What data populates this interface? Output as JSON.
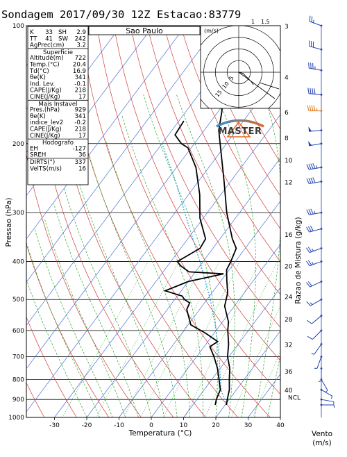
{
  "title": "Sondagem 2017/09/30 12Z Estacao:83779",
  "station_name": "Sao Paulo",
  "brand": "MASTER",
  "colors": {
    "temperature": "#000000",
    "dewpoint": "#000000",
    "isotherm": "#4a6fd6",
    "dry_adiabat": "#d23a3a",
    "moist_adiabat": "#2aa52a",
    "mixing_ratio": "#2aa52a",
    "parcel": "#1fa0d8",
    "wind_barb": "#1f3fb0",
    "wind_barb_highlight": "#e07820"
  },
  "chart_data": {
    "type": "skew-t",
    "xlabel": "Temperatura (°C)",
    "ylabel": "Pressao (hPa)",
    "y2label": "Razao de Mistura (g/kg)",
    "wind_label": "Vento",
    "wind_unit": "(m/s)",
    "x_ticks": [
      -30,
      -20,
      -10,
      0,
      10,
      20,
      30,
      40
    ],
    "p_ticks": [
      100,
      200,
      300,
      400,
      500,
      600,
      700,
      800,
      900,
      1000
    ],
    "mixing_ratio_ticks": [
      {
        "value": "3",
        "p": 100
      },
      {
        "value": "4",
        "p": 135
      },
      {
        "value": "6",
        "p": 166
      },
      {
        "value": "8",
        "p": 193
      },
      {
        "value": "10",
        "p": 220
      },
      {
        "value": "12",
        "p": 250
      },
      {
        "value": "16",
        "p": 340
      },
      {
        "value": "20",
        "p": 410
      },
      {
        "value": "24",
        "p": 490
      },
      {
        "value": "28",
        "p": 560
      },
      {
        "value": "32",
        "p": 650
      },
      {
        "value": "36",
        "p": 760
      },
      {
        "value": "40",
        "p": 850
      }
    ],
    "ncl_label": "NCL",
    "temperature_profile": [
      {
        "p": 929,
        "t": 20.4
      },
      {
        "p": 900,
        "t": 19.4
      },
      {
        "p": 850,
        "t": 17.8
      },
      {
        "p": 800,
        "t": 15.4
      },
      {
        "p": 750,
        "t": 13.0
      },
      {
        "p": 700,
        "t": 9.6
      },
      {
        "p": 650,
        "t": 7.0
      },
      {
        "p": 620,
        "t": 5.0
      },
      {
        "p": 600,
        "t": 3.6
      },
      {
        "p": 570,
        "t": 1.8
      },
      {
        "p": 520,
        "t": -3.0
      },
      {
        "p": 480,
        "t": -5.2
      },
      {
        "p": 450,
        "t": -8.0
      },
      {
        "p": 420,
        "t": -10.8
      },
      {
        "p": 400,
        "t": -11.4
      },
      {
        "p": 370,
        "t": -12.8
      },
      {
        "p": 350,
        "t": -16.2
      },
      {
        "p": 300,
        "t": -24.0
      },
      {
        "p": 250,
        "t": -32.0
      },
      {
        "p": 200,
        "t": -42.0
      },
      {
        "p": 185,
        "t": -45.5
      },
      {
        "p": 165,
        "t": -49.0
      },
      {
        "p": 150,
        "t": -53.0
      },
      {
        "p": 130,
        "t": -56.5
      },
      {
        "p": 115,
        "t": -59.0
      },
      {
        "p": 100,
        "t": -62.5
      }
    ],
    "dewpoint_profile": [
      {
        "p": 929,
        "t": 16.9
      },
      {
        "p": 900,
        "t": 16.0
      },
      {
        "p": 850,
        "t": 15.0
      },
      {
        "p": 800,
        "t": 12.2
      },
      {
        "p": 750,
        "t": 9.2
      },
      {
        "p": 700,
        "t": 5.4
      },
      {
        "p": 660,
        "t": 1.8
      },
      {
        "p": 640,
        "t": 3.0
      },
      {
        "p": 610,
        "t": -2.6
      },
      {
        "p": 580,
        "t": -9.2
      },
      {
        "p": 530,
        "t": -14.0
      },
      {
        "p": 510,
        "t": -14.6
      },
      {
        "p": 500,
        "t": -17.0
      },
      {
        "p": 490,
        "t": -18.5
      },
      {
        "p": 475,
        "t": -25.0
      },
      {
        "p": 450,
        "t": -20.0
      },
      {
        "p": 430,
        "t": -10.8
      },
      {
        "p": 425,
        "t": -22.0
      },
      {
        "p": 410,
        "t": -26.0
      },
      {
        "p": 400,
        "t": -28.0
      },
      {
        "p": 370,
        "t": -24.0
      },
      {
        "p": 350,
        "t": -24.5
      },
      {
        "p": 310,
        "t": -31.0
      },
      {
        "p": 270,
        "t": -36.5
      },
      {
        "p": 230,
        "t": -44.0
      },
      {
        "p": 205,
        "t": -51.0
      },
      {
        "p": 200,
        "t": -54.0
      },
      {
        "p": 190,
        "t": -58.0
      },
      {
        "p": 175,
        "t": -58.5
      }
    ],
    "parcel_profile": [
      {
        "p": 929,
        "t": 20.4
      },
      {
        "p": 850,
        "t": 15.2
      },
      {
        "p": 700,
        "t": 7.0
      },
      {
        "p": 600,
        "t": 0.0
      },
      {
        "p": 500,
        "t": -9.0
      },
      {
        "p": 400,
        "t": -21.0
      },
      {
        "p": 300,
        "t": -37.0
      },
      {
        "p": 250,
        "t": -47.0
      },
      {
        "p": 200,
        "t": -60.0
      }
    ],
    "wind_barbs": [
      {
        "p": 100,
        "dir": 290,
        "speed": 25
      },
      {
        "p": 115,
        "dir": 285,
        "speed": 30
      },
      {
        "p": 130,
        "dir": 280,
        "speed": 35
      },
      {
        "p": 150,
        "dir": 275,
        "speed": 40
      },
      {
        "p": 165,
        "dir": 270,
        "speed": 45
      },
      {
        "p": 185,
        "dir": 265,
        "speed": 50
      },
      {
        "p": 200,
        "dir": 260,
        "speed": 50
      },
      {
        "p": 230,
        "dir": 260,
        "speed": 45
      },
      {
        "p": 250,
        "dir": 260,
        "speed": 40
      },
      {
        "p": 300,
        "dir": 260,
        "speed": 35
      },
      {
        "p": 330,
        "dir": 255,
        "speed": 30
      },
      {
        "p": 370,
        "dir": 250,
        "speed": 25
      },
      {
        "p": 400,
        "dir": 250,
        "speed": 25
      },
      {
        "p": 450,
        "dir": 245,
        "speed": 20
      },
      {
        "p": 500,
        "dir": 240,
        "speed": 15
      },
      {
        "p": 550,
        "dir": 230,
        "speed": 10
      },
      {
        "p": 600,
        "dir": 225,
        "speed": 10
      },
      {
        "p": 650,
        "dir": 215,
        "speed": 5
      },
      {
        "p": 700,
        "dir": 200,
        "speed": 5
      },
      {
        "p": 750,
        "dir": 180,
        "speed": 5
      },
      {
        "p": 800,
        "dir": 150,
        "speed": 5
      },
      {
        "p": 850,
        "dir": 120,
        "speed": 5
      },
      {
        "p": 900,
        "dir": 100,
        "speed": 5
      },
      {
        "p": 929,
        "dir": 90,
        "speed": 5
      }
    ],
    "highlight_barb_p": 165
  },
  "indices": {
    "top_rows": [
      {
        "l1": "K",
        "v1": "33",
        "l2": "SH",
        "v2": "2.9"
      },
      {
        "l1": "TT",
        "v1": "41",
        "l2": "SW",
        "v2": "242"
      }
    ],
    "agprec": {
      "label": "AgPrec(cm)",
      "value": "3.2"
    },
    "superficie": {
      "header": "Superficie",
      "rows": [
        {
          "label": "Altitude(m)",
          "value": "722"
        },
        {
          "label": "Temp.(°C)",
          "value": "20.4"
        },
        {
          "label": "Td(°C)",
          "value": "16.9"
        },
        {
          "label": "θe(K)",
          "value": "341"
        },
        {
          "label": "Ind. Lev.",
          "value": "-0.1"
        },
        {
          "label": "CAPE(J/Kg)",
          "value": "218"
        },
        {
          "label": "CINE(J/Kg)",
          "value": "17"
        }
      ]
    },
    "mais_instavel": {
      "header": "Mais Instavel",
      "rows": [
        {
          "label": "Pres.(hPa)",
          "value": "929"
        },
        {
          "label": "θe(K)",
          "value": "341"
        },
        {
          "label": "indice_lev2",
          "value": "-0.2"
        },
        {
          "label": "CAPE(J/Kg)",
          "value": "218"
        },
        {
          "label": "CINE(J/Kg)",
          "value": "17"
        }
      ]
    },
    "hodografo": {
      "header": "Hodografo",
      "rows": [
        {
          "label": "EH",
          "value": "-127"
        },
        {
          "label": "SREH",
          "value": "36"
        }
      ]
    },
    "storm": {
      "rows": [
        {
          "label": "DIRTS(°)",
          "value": "337"
        },
        {
          "label": "VelTS(m/s)",
          "value": "16"
        }
      ]
    }
  },
  "hodograph": {
    "unit": "(m/s)",
    "top_labels": [
      "1",
      "1.5"
    ],
    "ring_labels": [
      "5",
      "10",
      "15"
    ],
    "rings_ms": [
      5,
      10,
      15,
      20
    ],
    "trace": [
      [
        4.0,
        -1.0
      ],
      [
        6.0,
        -3.0
      ],
      [
        9.0,
        -6.0
      ],
      [
        12.0,
        -9.0
      ],
      [
        14.0,
        -12.0
      ]
    ]
  }
}
